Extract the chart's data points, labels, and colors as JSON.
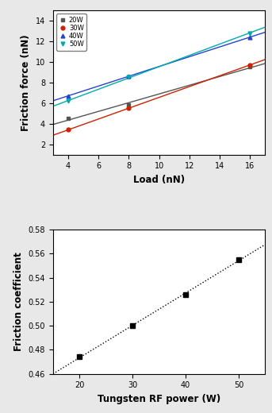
{
  "top": {
    "xlabel": "Load (nN)",
    "ylabel": "Friction force (nN)",
    "xlim": [
      3,
      17
    ],
    "ylim": [
      1,
      15
    ],
    "xticks": [
      4,
      6,
      8,
      10,
      12,
      14,
      16
    ],
    "yticks": [
      2,
      4,
      6,
      8,
      10,
      12,
      14
    ],
    "series": [
      {
        "label": "20W",
        "color": "#555555",
        "marker": "s",
        "x": [
          4,
          8,
          16
        ],
        "y": [
          4.5,
          5.8,
          9.5
        ]
      },
      {
        "label": "30W",
        "color": "#cc2200",
        "marker": "o",
        "x": [
          4,
          8,
          16
        ],
        "y": [
          3.4,
          5.5,
          9.7
        ]
      },
      {
        "label": "40W",
        "color": "#2244cc",
        "marker": "^",
        "x": [
          4,
          8,
          16
        ],
        "y": [
          6.7,
          8.6,
          12.4
        ]
      },
      {
        "label": "50W",
        "color": "#00aaaa",
        "marker": "v",
        "x": [
          4,
          8,
          16
        ],
        "y": [
          6.2,
          8.5,
          12.8
        ]
      }
    ]
  },
  "bottom": {
    "xlabel": "Tungsten RF power (W)",
    "ylabel": "Friction coefficient",
    "xlim": [
      15,
      55
    ],
    "ylim": [
      0.46,
      0.58
    ],
    "xticks": [
      20,
      30,
      40,
      50
    ],
    "yticks": [
      0.46,
      0.48,
      0.5,
      0.52,
      0.54,
      0.56,
      0.58
    ],
    "x": [
      20,
      30,
      40,
      50
    ],
    "y": [
      0.474,
      0.5,
      0.526,
      0.555
    ],
    "color": "black",
    "marker": "s"
  },
  "bg_color": "#e8e8e8",
  "plot_bg": "#ffffff"
}
